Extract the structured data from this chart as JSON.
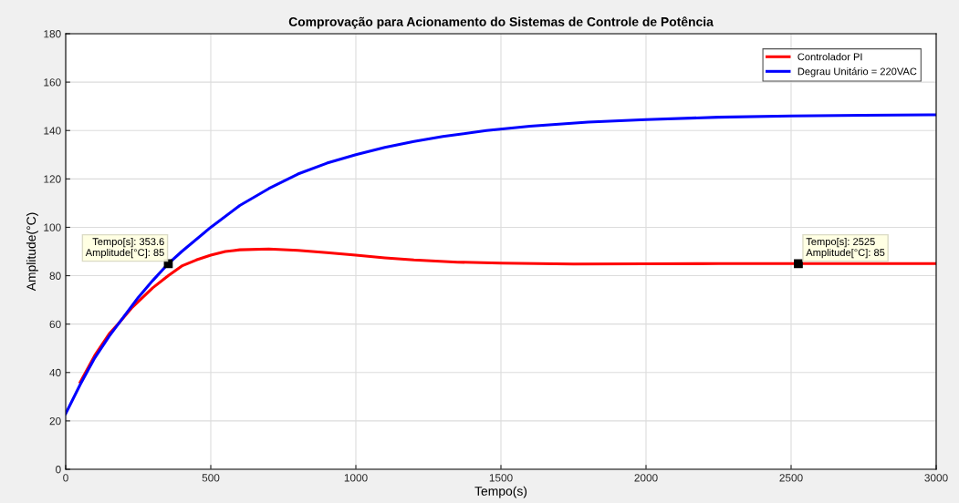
{
  "chart_data": {
    "type": "line",
    "title": "Comprovação para Acionamento do Sistemas de Controle de Potência",
    "xlabel": "Tempo(s)",
    "ylabel": "Amplitude(°C)",
    "xlim": [
      0,
      3000
    ],
    "xticks": [
      0,
      500,
      1000,
      1500,
      2000,
      2500,
      3000
    ],
    "ylim": [
      0,
      180
    ],
    "yticks": [
      0,
      20,
      40,
      60,
      80,
      100,
      120,
      140,
      160,
      180
    ],
    "grid": true,
    "legend": "top right",
    "series": [
      {
        "name": "Controlador PI",
        "color": "#ff0000",
        "x": [
          50,
          100,
          150,
          180,
          230,
          300,
          353.6,
          400,
          450,
          500,
          550,
          600,
          700,
          800,
          900,
          1000,
          1100,
          1200,
          1350,
          1500,
          1750,
          2000,
          2250,
          2525,
          2750,
          3000
        ],
        "values": [
          36,
          47,
          56,
          60,
          67,
          75,
          80,
          84,
          86.5,
          88.5,
          90,
          90.7,
          91,
          90.5,
          89.5,
          88.5,
          87.4,
          86.5,
          85.6,
          85.2,
          84.8,
          84.9,
          85,
          85,
          85,
          85
        ]
      },
      {
        "name": "Degrau Unitário = 220VAC",
        "color": "#0000ff",
        "x": [
          0,
          50,
          100,
          150,
          200,
          250,
          300,
          353.6,
          400,
          500,
          600,
          700,
          800,
          900,
          1000,
          1100,
          1200,
          1300,
          1450,
          1600,
          1800,
          2000,
          2250,
          2500,
          2750,
          3000
        ],
        "values": [
          23,
          35,
          46,
          55,
          63,
          71,
          78,
          85,
          90,
          100,
          109,
          116,
          122,
          126.5,
          130,
          133,
          135.5,
          137.5,
          140,
          141.8,
          143.5,
          144.5,
          145.5,
          146,
          146.3,
          146.5
        ]
      }
    ],
    "annotations": [
      {
        "text": "Tempo[s]: 353.6\nAmplitude[°C]: 85",
        "x": 353.6,
        "y": 85
      },
      {
        "text": "Tempo[s]: 2525\nAmplitude[°C]: 85",
        "x": 2525,
        "y": 85
      }
    ]
  }
}
